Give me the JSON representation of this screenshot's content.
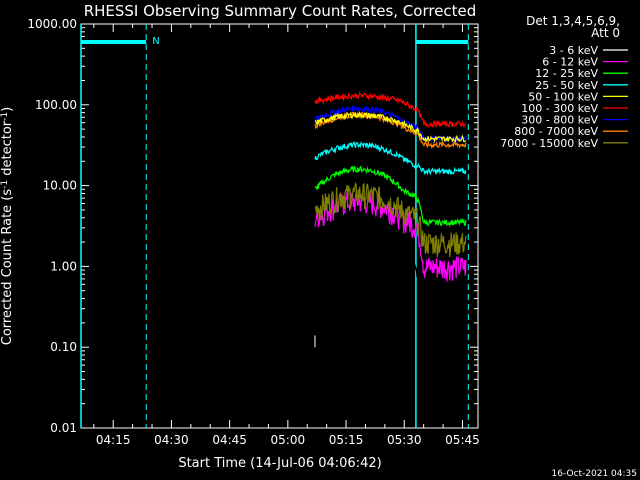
{
  "chart_data": {
    "type": "line",
    "title": "RHESSI Observing Summary Count Rates, Corrected",
    "xlabel": "Start Time (14-Jul-06 04:06:42)",
    "ylabel": "Corrected Count Rate (s⁻¹ detector⁻¹)",
    "ylabel_main": "Corrected Count Rate (s",
    "ylabel_sup1": "-1",
    "ylabel_mid": " detector",
    "ylabel_sup2": "-1",
    "ylabel_end": ")",
    "y_scale": "log",
    "ylim": [
      0.01,
      1000
    ],
    "xlim_min": [
      246.7,
      287.0
    ],
    "y_ticks": [
      "0.01",
      "0.10",
      "1.00",
      "10.00",
      "100.00",
      "1000.00"
    ],
    "x_ticks": [
      {
        "label": "04:15",
        "min": 255
      },
      {
        "label": "04:30",
        "min": 270
      },
      {
        "label": "04:45",
        "min": 285
      },
      {
        "label": "05:00",
        "min": 300
      },
      {
        "label": "05:15",
        "min": 315
      },
      {
        "label": "05:30",
        "min": 330
      },
      {
        "label": "05:45",
        "min": 345
      }
    ],
    "legend_header_1": "Det 1,3,4,5,6,9,",
    "legend_header_2": "Att 0",
    "legend_position": "right",
    "flags": {
      "night_segments": [
        [
          246.7,
          263.5
        ],
        [
          333.0,
          346.5
        ]
      ],
      "night_label": "N",
      "dashed_lines": [
        263.5,
        346.5
      ],
      "solid_lines": [
        246.7,
        333.0
      ]
    },
    "series": [
      {
        "name": "3 - 6 keV",
        "color": "#000000",
        "values_start": 1.0,
        "values_peak": 2.5,
        "values_end": 1.0
      },
      {
        "name": "6 - 12 keV",
        "color": "#ff00ff",
        "values_start": 4.0,
        "values_peak": 6.5,
        "values_end": 1.0
      },
      {
        "name": "12 - 25 keV",
        "color": "#00ff00",
        "values_start": 9.0,
        "values_peak": 16.0,
        "values_end": 3.5
      },
      {
        "name": "25 - 50 keV",
        "color": "#00ffff",
        "values_start": 22.0,
        "values_peak": 32.0,
        "values_end": 15.0
      },
      {
        "name": "50 - 100 keV",
        "color": "#ffff00",
        "values_start": 60.0,
        "values_peak": 75.0,
        "values_end": 38.0
      },
      {
        "name": "100 - 300 keV",
        "color": "#ff0000",
        "values_start": 110.0,
        "values_peak": 130.0,
        "values_end": 58.0
      },
      {
        "name": "300 - 800 keV",
        "color": "#0000ff",
        "values_start": 65.0,
        "values_peak": 90.0,
        "values_end": 38.0
      },
      {
        "name": "800 - 7000 keV",
        "color": "#ff8000",
        "values_start": 55.0,
        "values_peak": 75.0,
        "values_end": 32.0
      },
      {
        "name": "7000 - 15000 keV",
        "color": "#808000",
        "values_start": 5.0,
        "values_peak": 8.0,
        "values_end": 2.0
      }
    ],
    "data_start_min": 307.0,
    "data_drop_min": 333.0,
    "data_end_min": 346.0,
    "footer_date": "16-Oct-2021 04:35"
  }
}
